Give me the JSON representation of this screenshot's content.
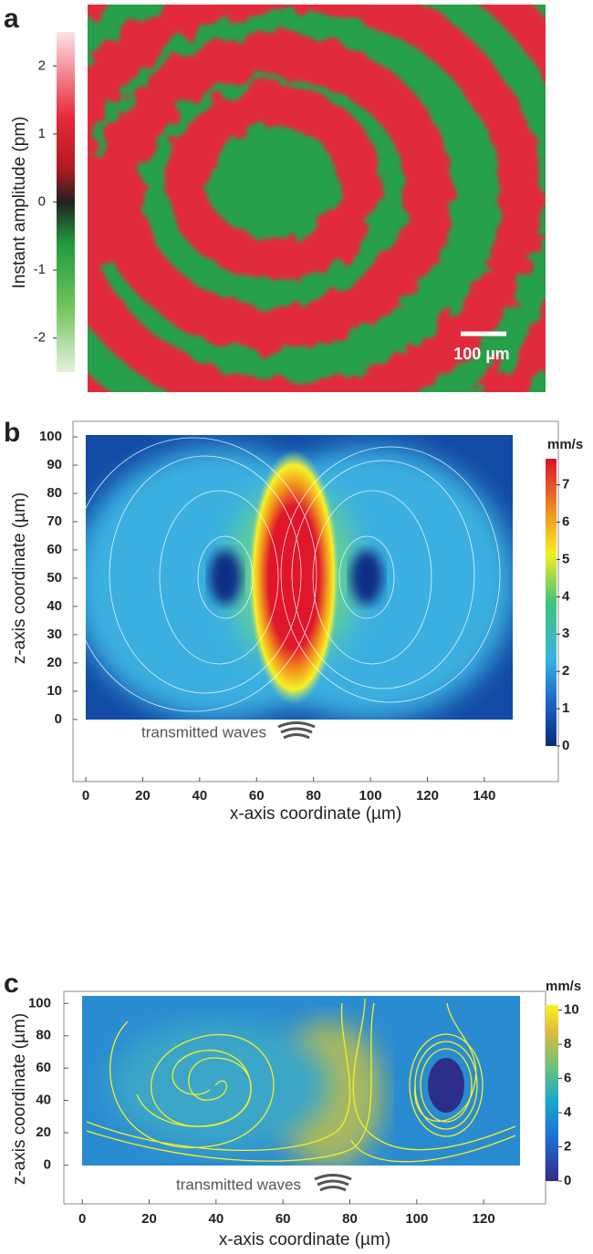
{
  "panels": [
    {
      "label": "a",
      "colorbar": {
        "label": "Instant amplitude (pm)",
        "ticks": [
          -2,
          -1,
          0,
          1,
          2
        ],
        "lim": [
          -2.5,
          2.5
        ]
      },
      "scale_bar": "100 µm"
    },
    {
      "label": "b",
      "xlabel": "x-axis coordinate (µm)",
      "ylabel": "z-axis coordinate (µm)",
      "xticks": [
        0,
        20,
        40,
        60,
        80,
        100,
        120,
        140
      ],
      "yticks": [
        0,
        10,
        20,
        30,
        40,
        50,
        60,
        70,
        80,
        90,
        100
      ],
      "xlim": [
        -4.5,
        166
      ],
      "ylim": [
        -22,
        105.5
      ],
      "colorbar": {
        "label": "mm/s",
        "ticks": [
          0,
          1,
          2,
          3,
          4,
          5,
          6,
          7
        ],
        "lim": [
          0,
          7.7
        ]
      },
      "annotation": "transmitted waves"
    },
    {
      "label": "c",
      "xlabel": "x-axis coordinate (µm)",
      "ylabel": "z-axis coordinate (µm)",
      "xticks": [
        0,
        20,
        40,
        60,
        80,
        100,
        120
      ],
      "yticks": [
        0,
        20,
        40,
        60,
        80,
        100
      ],
      "xlim": [
        -5.5,
        138.5
      ],
      "ylim": [
        -24,
        107.5
      ],
      "colorbar": {
        "label": "mm/s",
        "ticks": [
          0,
          2,
          4,
          6,
          8,
          10
        ],
        "lim": [
          0,
          10.3
        ]
      },
      "annotation": "transmitted waves"
    }
  ]
}
